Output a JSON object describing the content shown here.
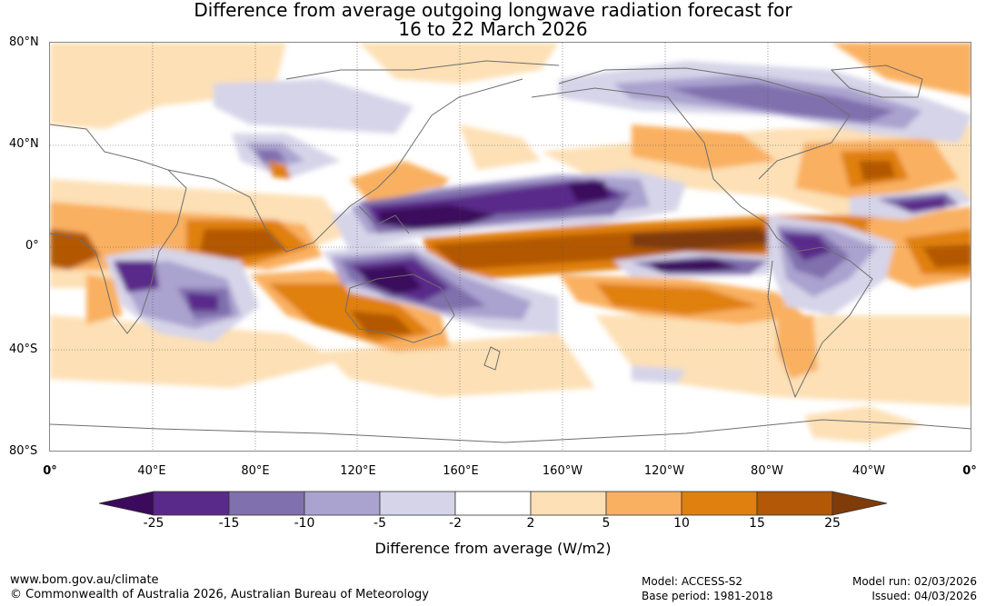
{
  "title_line1": "Difference from average outgoing longwave radiation forecast for",
  "title_line2": "16 to 22 March 2026",
  "lat_labels": [
    "80°N",
    "40°N",
    "0°",
    "40°S",
    "80°S"
  ],
  "lon_labels": [
    "0°",
    "40°E",
    "80°E",
    "120°E",
    "160°E",
    "160°W",
    "120°W",
    "80°W",
    "40°W",
    "0°"
  ],
  "colorbar": {
    "ticks": [
      "-25",
      "-15",
      "-10",
      "-5",
      "-2",
      "2",
      "5",
      "10",
      "15",
      "25"
    ],
    "colors": [
      "#3b0a5c",
      "#5a2a8a",
      "#8070ad",
      "#aaa2cf",
      "#d6d4e8",
      "#ffffff",
      "#fde0b5",
      "#f9b060",
      "#e0800f",
      "#b35806",
      "#7f3b08"
    ],
    "title": "Difference from average (W/m2)"
  },
  "footer": {
    "url": "www.bom.gov.au/climate",
    "copyright": "© Commonwealth of Australia 2026, Australian Bureau of Meteorology",
    "model": "Model: ACCESS-S2",
    "base_period": "Base period: 1981-2018",
    "model_run": "Model run: 02/03/2026",
    "issued": "Issued: 04/03/2026"
  }
}
